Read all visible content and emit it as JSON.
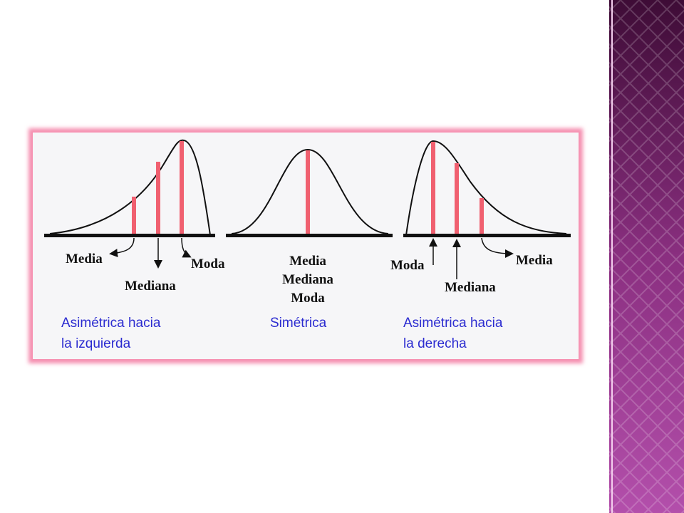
{
  "panels": [
    {
      "labels": [
        "Media",
        "Mediana",
        "Moda"
      ],
      "caption": [
        "Asimétrica hacia",
        "la izquierda"
      ]
    },
    {
      "labels": [
        "Media",
        "Mediana",
        "Moda"
      ],
      "caption": [
        "Simétrica"
      ]
    },
    {
      "labels": [
        "Moda",
        "Mediana",
        "Media"
      ],
      "caption": [
        "Asimétrica hacia",
        "la derecha"
      ]
    }
  ]
}
